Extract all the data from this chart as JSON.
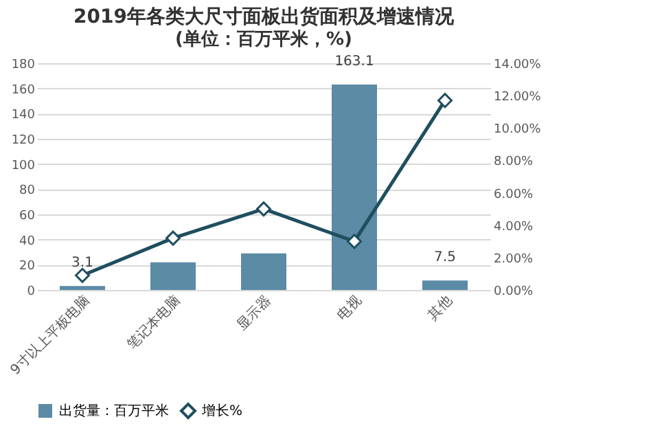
{
  "chart_data": {
    "type": "bar",
    "title": "2019年各类大尺寸面板出货面积及增速情况",
    "subtitle": "(单位：百万平米，%)",
    "categories": [
      "9寸以上平板电脑",
      "笔记本电脑",
      "显示器",
      "电视",
      "其他"
    ],
    "series": [
      {
        "name": "出货量：百万平米",
        "color": "#5b8ba5",
        "values": [
          3.1,
          22,
          29,
          163.1,
          7.5
        ],
        "value_labels": [
          "3.1",
          null,
          null,
          "163.1",
          "7.5"
        ]
      },
      {
        "name": "增长%",
        "type": "line",
        "axis": "y2",
        "color": "#1f4e5f",
        "marker": "diamond",
        "values": [
          0.9,
          3.2,
          5.0,
          3.0,
          11.7
        ]
      }
    ],
    "ylim": [
      0,
      180
    ],
    "yticks": [
      0,
      20,
      40,
      60,
      80,
      100,
      120,
      140,
      160,
      180
    ],
    "y2lim": [
      0,
      14
    ],
    "y2ticks": [
      {
        "value": 0,
        "label": "0.00%"
      },
      {
        "value": 2,
        "label": "2.00%"
      },
      {
        "value": 4,
        "label": "4.00%"
      },
      {
        "value": 6,
        "label": "6.00%"
      },
      {
        "value": 8,
        "label": "8.00%"
      },
      {
        "value": 10,
        "label": "10.00%"
      },
      {
        "value": 12,
        "label": "12.00%"
      },
      {
        "value": 14,
        "label": "14.00%"
      }
    ],
    "grid": "y",
    "legend": "bottom"
  }
}
